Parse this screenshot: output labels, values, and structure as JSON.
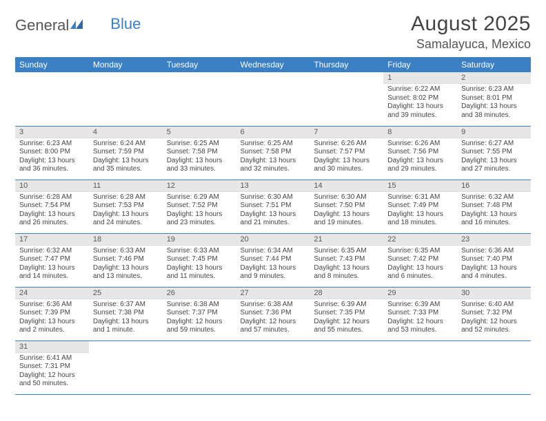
{
  "logo": {
    "text_general": "General",
    "text_blue": "Blue"
  },
  "title": "August 2025",
  "location": "Samalayuca, Mexico",
  "colors": {
    "header_bg": "#3b7fc4",
    "header_text": "#ffffff",
    "daynum_bg": "#e7e7e7",
    "row_divider": "#3b7fc4",
    "page_bg": "#ffffff",
    "body_text": "#444444"
  },
  "weekdays": [
    "Sunday",
    "Monday",
    "Tuesday",
    "Wednesday",
    "Thursday",
    "Friday",
    "Saturday"
  ],
  "grid": [
    [
      null,
      null,
      null,
      null,
      null,
      {
        "n": "1",
        "sr": "Sunrise: 6:22 AM",
        "ss": "Sunset: 8:02 PM",
        "dl": "Daylight: 13 hours and 39 minutes."
      },
      {
        "n": "2",
        "sr": "Sunrise: 6:23 AM",
        "ss": "Sunset: 8:01 PM",
        "dl": "Daylight: 13 hours and 38 minutes."
      }
    ],
    [
      {
        "n": "3",
        "sr": "Sunrise: 6:23 AM",
        "ss": "Sunset: 8:00 PM",
        "dl": "Daylight: 13 hours and 36 minutes."
      },
      {
        "n": "4",
        "sr": "Sunrise: 6:24 AM",
        "ss": "Sunset: 7:59 PM",
        "dl": "Daylight: 13 hours and 35 minutes."
      },
      {
        "n": "5",
        "sr": "Sunrise: 6:25 AM",
        "ss": "Sunset: 7:58 PM",
        "dl": "Daylight: 13 hours and 33 minutes."
      },
      {
        "n": "6",
        "sr": "Sunrise: 6:25 AM",
        "ss": "Sunset: 7:58 PM",
        "dl": "Daylight: 13 hours and 32 minutes."
      },
      {
        "n": "7",
        "sr": "Sunrise: 6:26 AM",
        "ss": "Sunset: 7:57 PM",
        "dl": "Daylight: 13 hours and 30 minutes."
      },
      {
        "n": "8",
        "sr": "Sunrise: 6:26 AM",
        "ss": "Sunset: 7:56 PM",
        "dl": "Daylight: 13 hours and 29 minutes."
      },
      {
        "n": "9",
        "sr": "Sunrise: 6:27 AM",
        "ss": "Sunset: 7:55 PM",
        "dl": "Daylight: 13 hours and 27 minutes."
      }
    ],
    [
      {
        "n": "10",
        "sr": "Sunrise: 6:28 AM",
        "ss": "Sunset: 7:54 PM",
        "dl": "Daylight: 13 hours and 26 minutes."
      },
      {
        "n": "11",
        "sr": "Sunrise: 6:28 AM",
        "ss": "Sunset: 7:53 PM",
        "dl": "Daylight: 13 hours and 24 minutes."
      },
      {
        "n": "12",
        "sr": "Sunrise: 6:29 AM",
        "ss": "Sunset: 7:52 PM",
        "dl": "Daylight: 13 hours and 23 minutes."
      },
      {
        "n": "13",
        "sr": "Sunrise: 6:30 AM",
        "ss": "Sunset: 7:51 PM",
        "dl": "Daylight: 13 hours and 21 minutes."
      },
      {
        "n": "14",
        "sr": "Sunrise: 6:30 AM",
        "ss": "Sunset: 7:50 PM",
        "dl": "Daylight: 13 hours and 19 minutes."
      },
      {
        "n": "15",
        "sr": "Sunrise: 6:31 AM",
        "ss": "Sunset: 7:49 PM",
        "dl": "Daylight: 13 hours and 18 minutes."
      },
      {
        "n": "16",
        "sr": "Sunrise: 6:32 AM",
        "ss": "Sunset: 7:48 PM",
        "dl": "Daylight: 13 hours and 16 minutes."
      }
    ],
    [
      {
        "n": "17",
        "sr": "Sunrise: 6:32 AM",
        "ss": "Sunset: 7:47 PM",
        "dl": "Daylight: 13 hours and 14 minutes."
      },
      {
        "n": "18",
        "sr": "Sunrise: 6:33 AM",
        "ss": "Sunset: 7:46 PM",
        "dl": "Daylight: 13 hours and 13 minutes."
      },
      {
        "n": "19",
        "sr": "Sunrise: 6:33 AM",
        "ss": "Sunset: 7:45 PM",
        "dl": "Daylight: 13 hours and 11 minutes."
      },
      {
        "n": "20",
        "sr": "Sunrise: 6:34 AM",
        "ss": "Sunset: 7:44 PM",
        "dl": "Daylight: 13 hours and 9 minutes."
      },
      {
        "n": "21",
        "sr": "Sunrise: 6:35 AM",
        "ss": "Sunset: 7:43 PM",
        "dl": "Daylight: 13 hours and 8 minutes."
      },
      {
        "n": "22",
        "sr": "Sunrise: 6:35 AM",
        "ss": "Sunset: 7:42 PM",
        "dl": "Daylight: 13 hours and 6 minutes."
      },
      {
        "n": "23",
        "sr": "Sunrise: 6:36 AM",
        "ss": "Sunset: 7:40 PM",
        "dl": "Daylight: 13 hours and 4 minutes."
      }
    ],
    [
      {
        "n": "24",
        "sr": "Sunrise: 6:36 AM",
        "ss": "Sunset: 7:39 PM",
        "dl": "Daylight: 13 hours and 2 minutes."
      },
      {
        "n": "25",
        "sr": "Sunrise: 6:37 AM",
        "ss": "Sunset: 7:38 PM",
        "dl": "Daylight: 13 hours and 1 minute."
      },
      {
        "n": "26",
        "sr": "Sunrise: 6:38 AM",
        "ss": "Sunset: 7:37 PM",
        "dl": "Daylight: 12 hours and 59 minutes."
      },
      {
        "n": "27",
        "sr": "Sunrise: 6:38 AM",
        "ss": "Sunset: 7:36 PM",
        "dl": "Daylight: 12 hours and 57 minutes."
      },
      {
        "n": "28",
        "sr": "Sunrise: 6:39 AM",
        "ss": "Sunset: 7:35 PM",
        "dl": "Daylight: 12 hours and 55 minutes."
      },
      {
        "n": "29",
        "sr": "Sunrise: 6:39 AM",
        "ss": "Sunset: 7:33 PM",
        "dl": "Daylight: 12 hours and 53 minutes."
      },
      {
        "n": "30",
        "sr": "Sunrise: 6:40 AM",
        "ss": "Sunset: 7:32 PM",
        "dl": "Daylight: 12 hours and 52 minutes."
      }
    ],
    [
      {
        "n": "31",
        "sr": "Sunrise: 6:41 AM",
        "ss": "Sunset: 7:31 PM",
        "dl": "Daylight: 12 hours and 50 minutes."
      },
      null,
      null,
      null,
      null,
      null,
      null
    ]
  ]
}
